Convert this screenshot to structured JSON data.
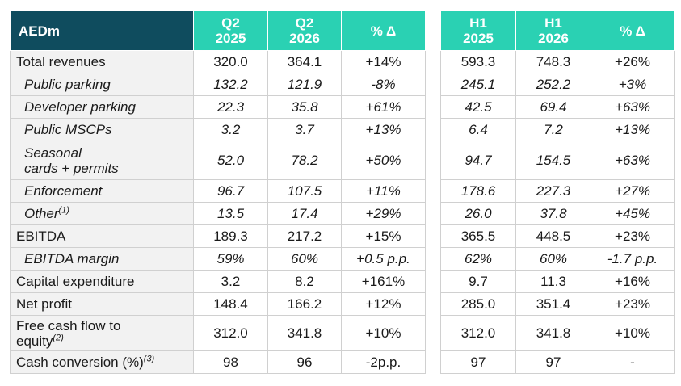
{
  "header": {
    "corner": "AEDm",
    "left_cols": [
      {
        "l1": "Q2",
        "l2": "2025"
      },
      {
        "l1": "Q2",
        "l2": "2026"
      },
      {
        "l1": "% Δ",
        "l2": ""
      }
    ],
    "right_cols": [
      {
        "l1": "H1",
        "l2": "2025"
      },
      {
        "l1": "H1",
        "l2": "2026"
      },
      {
        "l1": "% Δ",
        "l2": ""
      }
    ]
  },
  "rows": [
    {
      "label": "Total revenues",
      "note": "",
      "label2": "",
      "q2_2025": "320.0",
      "q2_2026": "364.1",
      "q_delta": "+14%",
      "h1_2025": "593.3",
      "h1_2026": "748.3",
      "h_delta": "+26%"
    },
    {
      "label": "Public parking",
      "note": "",
      "label2": "",
      "q2_2025": "132.2",
      "q2_2026": "121.9",
      "q_delta": "-8%",
      "h1_2025": "245.1",
      "h1_2026": "252.2",
      "h_delta": "+3%"
    },
    {
      "label": "Developer parking",
      "note": "",
      "label2": "",
      "q2_2025": "22.3",
      "q2_2026": "35.8",
      "q_delta": "+61%",
      "h1_2025": "42.5",
      "h1_2026": "69.4",
      "h_delta": "+63%"
    },
    {
      "label": "Public MSCPs",
      "note": "",
      "label2": "",
      "q2_2025": "3.2",
      "q2_2026": "3.7",
      "q_delta": "+13%",
      "h1_2025": "6.4",
      "h1_2026": "7.2",
      "h_delta": "+13%"
    },
    {
      "label": "Seasonal",
      "note": "",
      "label2": "cards + permits",
      "q2_2025": "52.0",
      "q2_2026": "78.2",
      "q_delta": "+50%",
      "h1_2025": "94.7",
      "h1_2026": "154.5",
      "h_delta": "+63%"
    },
    {
      "label": "Enforcement",
      "note": "",
      "label2": "",
      "q2_2025": "96.7",
      "q2_2026": "107.5",
      "q_delta": "+11%",
      "h1_2025": "178.6",
      "h1_2026": "227.3",
      "h_delta": "+27%"
    },
    {
      "label": "Other",
      "note": "(1)",
      "label2": "",
      "q2_2025": "13.5",
      "q2_2026": "17.4",
      "q_delta": "+29%",
      "h1_2025": "26.0",
      "h1_2026": "37.8",
      "h_delta": "+45%"
    },
    {
      "label": "EBITDA",
      "note": "",
      "label2": "",
      "q2_2025": "189.3",
      "q2_2026": "217.2",
      "q_delta": "+15%",
      "h1_2025": "365.5",
      "h1_2026": "448.5",
      "h_delta": "+23%"
    },
    {
      "label": "EBITDA margin",
      "note": "",
      "label2": "",
      "q2_2025": "59%",
      "q2_2026": "60%",
      "q_delta": "+0.5 p.p.",
      "h1_2025": "62%",
      "h1_2026": "60%",
      "h_delta": "-1.7 p.p."
    },
    {
      "label": "Capital expenditure",
      "note": "",
      "label2": "",
      "q2_2025": "3.2",
      "q2_2026": "8.2",
      "q_delta": "+161%",
      "h1_2025": "9.7",
      "h1_2026": "11.3",
      "h_delta": "+16%"
    },
    {
      "label": "Net profit",
      "note": "",
      "label2": "",
      "q2_2025": "148.4",
      "q2_2026": "166.2",
      "q_delta": "+12%",
      "h1_2025": "285.0",
      "h1_2026": "351.4",
      "h_delta": "+23%"
    },
    {
      "label": "Free cash flow to",
      "note": "",
      "label2": "equity",
      "note2": "(2)",
      "q2_2025": "312.0",
      "q2_2026": "341.8",
      "q_delta": "+10%",
      "h1_2025": "312.0",
      "h1_2026": "341.8",
      "h_delta": "+10%"
    },
    {
      "label": "Cash conversion (%)",
      "note": "(3)",
      "label2": "",
      "q2_2025": "98",
      "q2_2026": "96",
      "q_delta": "-2p.p.",
      "h1_2025": "97",
      "h1_2026": "97",
      "h_delta": "-"
    }
  ]
}
